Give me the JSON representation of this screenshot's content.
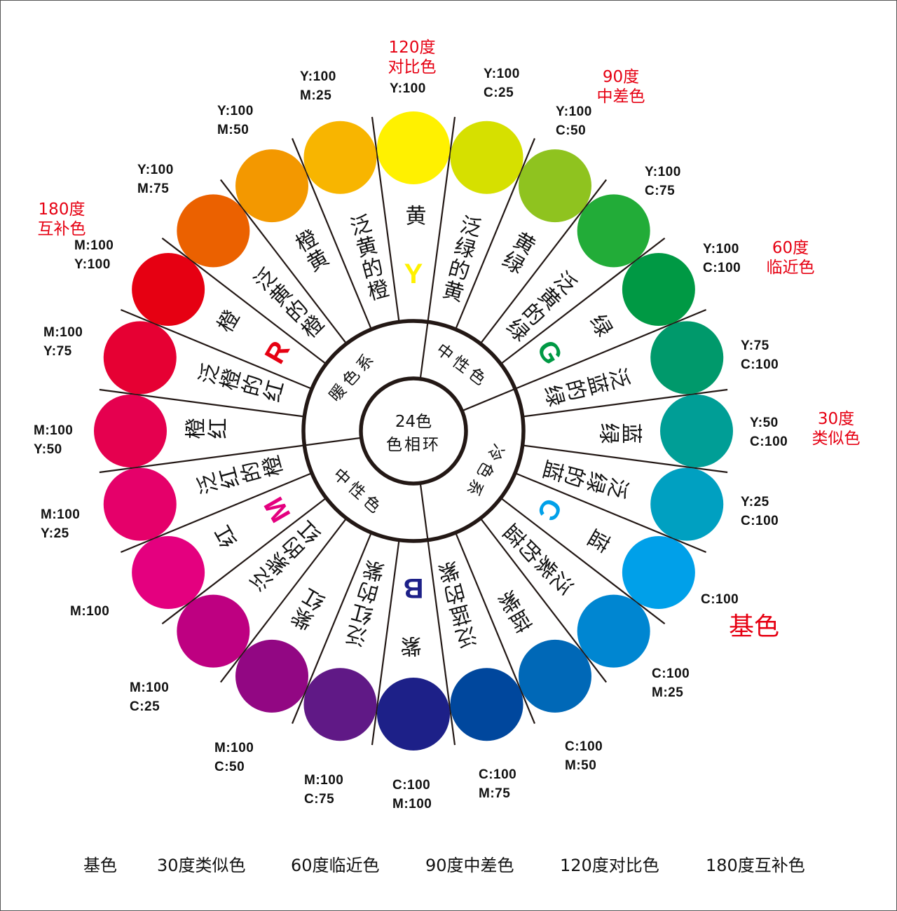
{
  "center_label": [
    "24色",
    "色相环"
  ],
  "inner_ring": [
    {
      "label": "暖色系",
      "angle": 312,
      "flip": false
    },
    {
      "label": "中性色",
      "angle": 37,
      "flip": false
    },
    {
      "label": "冷色系",
      "angle": 120,
      "flip": false
    },
    {
      "label": "中性色",
      "angle": 222,
      "flip": true
    }
  ],
  "inner_dividers_deg": [
    7.5,
    67.5,
    172.5,
    262.5
  ],
  "hues": [
    {
      "name": "黄",
      "cmyk": "Y:100",
      "color": "#fff100",
      "letter": "Y",
      "letter_color": "#fff100"
    },
    {
      "name": "泛绿的黄",
      "cmyk": "Y:100\nC:25",
      "color": "#d6e000"
    },
    {
      "name": "黄绿",
      "cmyk": "Y:100\nC:50",
      "color": "#8fc31f"
    },
    {
      "name": "泛黄的绿",
      "cmyk": "Y:100\nC:75",
      "color": "#22ac38"
    },
    {
      "name": "绿",
      "cmyk": "Y:100\nC:100",
      "color": "#009944",
      "letter": "G",
      "letter_color": "#009944"
    },
    {
      "name": "泛蓝的绿",
      "cmyk": "Y:75\nC:100",
      "color": "#00996b"
    },
    {
      "name": "蓝绿",
      "cmyk": "Y:50\nC:100",
      "color": "#009e96"
    },
    {
      "name": "泛绿的蓝",
      "cmyk": "Y:25\nC:100",
      "color": "#00a0c1"
    },
    {
      "name": "蓝",
      "cmyk": "C:100",
      "color": "#00a0e9",
      "letter": "C",
      "letter_color": "#00a0e9"
    },
    {
      "name": "泛紫的蓝",
      "cmyk": "C:100\nM:25",
      "color": "#0086d1"
    },
    {
      "name": "蓝紫",
      "cmyk": "C:100\nM:50",
      "color": "#0068b7"
    },
    {
      "name": "泛蓝的紫",
      "cmyk": "C:100\nM:75",
      "color": "#00479d"
    },
    {
      "name": "紫",
      "cmyk": "C:100\nM:100",
      "color": "#1d2088",
      "letter": "B",
      "letter_color": "#1d2088"
    },
    {
      "name": "泛红的紫",
      "cmyk": "M:100\nC:75",
      "color": "#601986"
    },
    {
      "name": "紫红",
      "cmyk": "M:100\nC:50",
      "color": "#920783"
    },
    {
      "name": "泛紫的红",
      "cmyk": "M:100\nC:25",
      "color": "#be0081"
    },
    {
      "name": "红",
      "cmyk": "M:100",
      "color": "#e4007f",
      "letter": "M",
      "letter_color": "#e4007f"
    },
    {
      "name": "泛红的橙",
      "cmyk": "M:100\nY:25",
      "color": "#e5006a"
    },
    {
      "name": "橙红",
      "cmyk": "M:100\nY:50",
      "color": "#e5004f"
    },
    {
      "name": "泛橙的红",
      "cmyk": "M:100\nY:75",
      "color": "#e60033"
    },
    {
      "name": "橙",
      "cmyk": "M:100\nY:100",
      "color": "#e60012",
      "letter": "R",
      "letter_color": "#e60012"
    },
    {
      "name": "泛黄的橙",
      "cmyk": "Y:100\nM:75",
      "color": "#eb6100"
    },
    {
      "name": "橙黄",
      "cmyk": "Y:100\nM:50",
      "color": "#f39800"
    },
    {
      "name": "泛黄的橙",
      "cmyk": "Y:100\nM:25",
      "color": "#f8b500"
    }
  ],
  "annotations": {
    "deg120": "120度\n对比色",
    "deg90": "90度\n中差色",
    "deg60": "60度\n临近色",
    "deg30": "30度\n类似色",
    "base": "基色",
    "deg180": "180度\n互补色"
  },
  "legend": [
    "基色",
    "30度类似色",
    "60度临近色",
    "90度中差色",
    "120度对比色",
    "180度互补色"
  ],
  "colors": {
    "annotation": "#e60012",
    "lines": "#231815"
  }
}
